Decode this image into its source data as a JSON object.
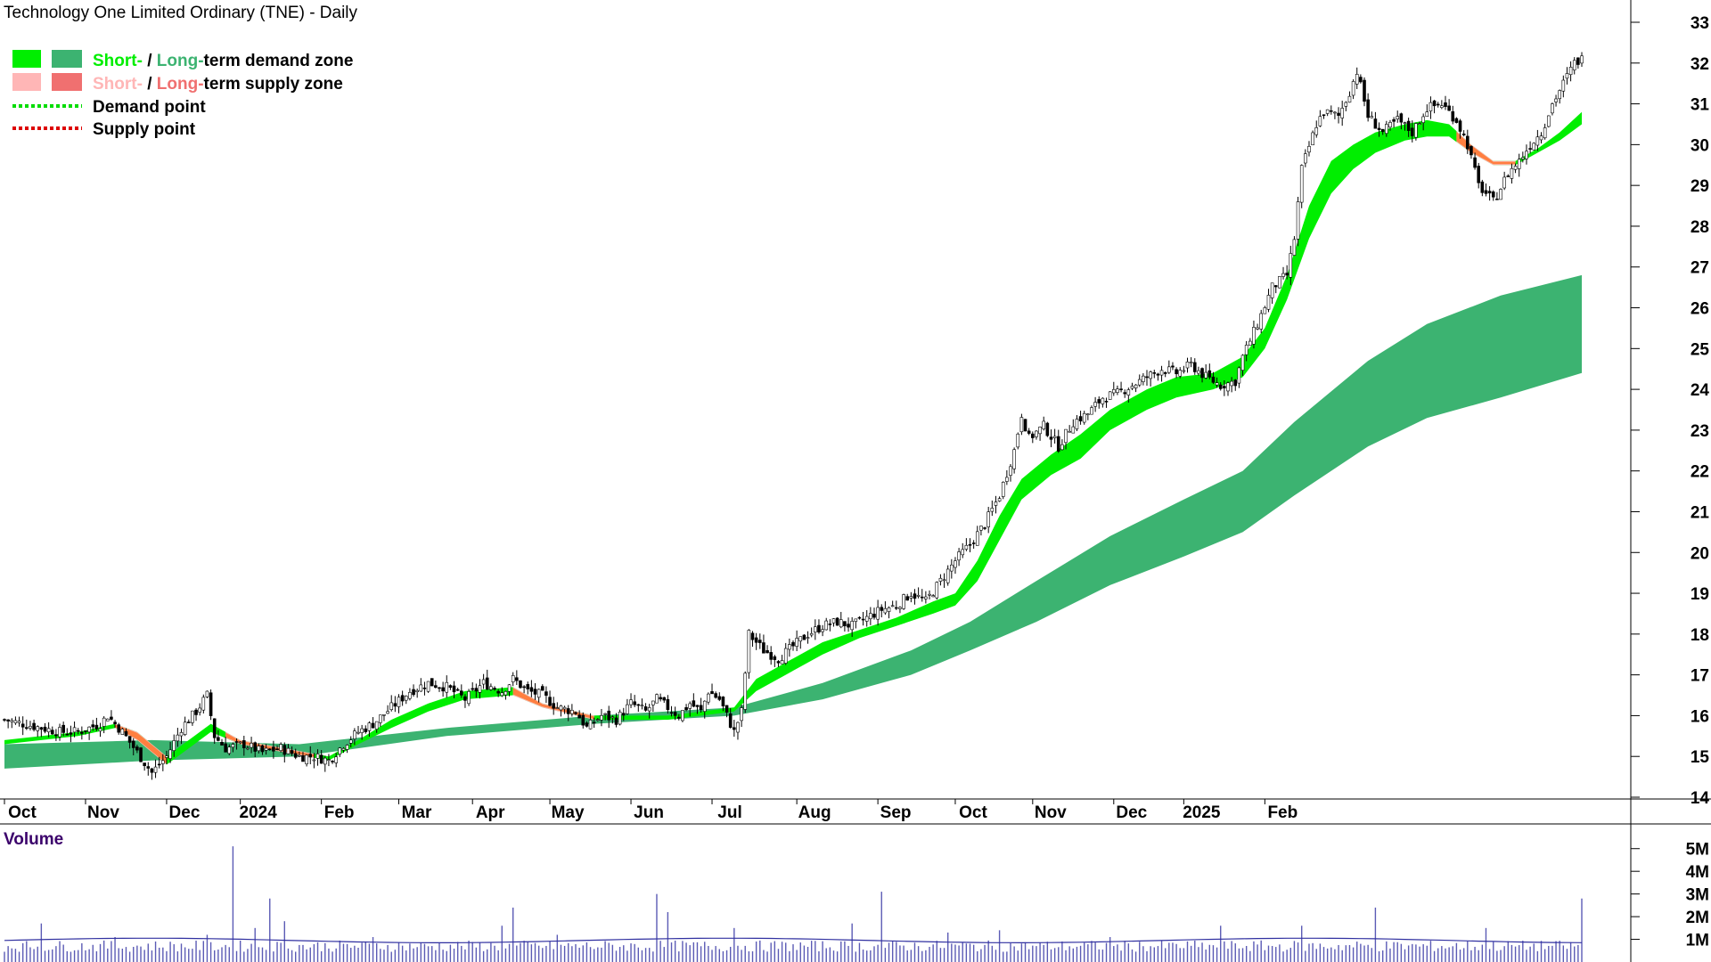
{
  "chart_data": {
    "type": "line",
    "title": "Technology One Limited Ordinary (TNE) - Daily",
    "legend": {
      "placement": "top-left",
      "items": [
        {
          "swatches": [
            "#00ee00",
            "#3cb371"
          ],
          "short": "Short-",
          "sep": " / ",
          "long": "Long-",
          "rest": "term demand zone",
          "short_color": "#00ee00",
          "long_color": "#3cb371"
        },
        {
          "swatches": [
            "#ffb6b6",
            "#f07070"
          ],
          "short": "Short-",
          "sep": " / ",
          "long": "Long-",
          "rest": "term supply zone",
          "short_color": "#ffb6b6",
          "long_color": "#f07070"
        },
        {
          "line_color": "#00dd00",
          "label": "Demand point"
        },
        {
          "line_color": "#dd0000",
          "label": "Supply point"
        }
      ]
    },
    "price_axis": {
      "min": 14,
      "max": 33,
      "ticks": [
        14,
        15,
        16,
        17,
        18,
        19,
        20,
        21,
        22,
        23,
        24,
        25,
        26,
        27,
        28,
        29,
        30,
        31,
        32,
        33
      ]
    },
    "time_axis": {
      "labels": [
        "Oct",
        "Nov",
        "Dec",
        "2024",
        "Feb",
        "Mar",
        "Apr",
        "May",
        "Jun",
        "Jul",
        "Aug",
        "Sep",
        "Oct",
        "Nov",
        "Dec",
        "2025",
        "Feb"
      ],
      "label_index": [
        0,
        22,
        44,
        64,
        86,
        107,
        127,
        148,
        170,
        192,
        215,
        237,
        258,
        279,
        301,
        320,
        342
      ]
    },
    "approx_close": [
      [
        0,
        15.9
      ],
      [
        5,
        15.8
      ],
      [
        10,
        15.7
      ],
      [
        15,
        15.6
      ],
      [
        20,
        15.6
      ],
      [
        26,
        15.8
      ],
      [
        28,
        16.0
      ],
      [
        32,
        15.6
      ],
      [
        36,
        15.1
      ],
      [
        40,
        14.6
      ],
      [
        44,
        15.0
      ],
      [
        48,
        15.7
      ],
      [
        52,
        16.1
      ],
      [
        55,
        16.5
      ],
      [
        57,
        15.5
      ],
      [
        60,
        15.2
      ],
      [
        65,
        15.3
      ],
      [
        70,
        15.1
      ],
      [
        75,
        15.2
      ],
      [
        80,
        15.0
      ],
      [
        84,
        15.0
      ],
      [
        88,
        14.9
      ],
      [
        92,
        15.3
      ],
      [
        96,
        15.6
      ],
      [
        100,
        15.8
      ],
      [
        105,
        16.2
      ],
      [
        110,
        16.6
      ],
      [
        115,
        16.8
      ],
      [
        120,
        16.7
      ],
      [
        125,
        16.4
      ],
      [
        130,
        16.8
      ],
      [
        135,
        16.6
      ],
      [
        138,
        16.9
      ],
      [
        142,
        16.6
      ],
      [
        146,
        16.5
      ],
      [
        150,
        16.2
      ],
      [
        155,
        16.1
      ],
      [
        158,
        15.7
      ],
      [
        162,
        16.0
      ],
      [
        166,
        15.9
      ],
      [
        170,
        16.3
      ],
      [
        174,
        16.1
      ],
      [
        177,
        16.4
      ],
      [
        180,
        16.2
      ],
      [
        183,
        16.0
      ],
      [
        186,
        16.3
      ],
      [
        189,
        16.1
      ],
      [
        191,
        16.6
      ],
      [
        194,
        16.4
      ],
      [
        198,
        15.6
      ],
      [
        200,
        16.1
      ],
      [
        202,
        18.0
      ],
      [
        206,
        17.6
      ],
      [
        210,
        17.4
      ],
      [
        214,
        17.7
      ],
      [
        218,
        18.0
      ],
      [
        222,
        18.2
      ],
      [
        226,
        18.3
      ],
      [
        230,
        18.2
      ],
      [
        234,
        18.4
      ],
      [
        238,
        18.6
      ],
      [
        242,
        18.7
      ],
      [
        246,
        19.0
      ],
      [
        250,
        18.8
      ],
      [
        254,
        19.3
      ],
      [
        258,
        19.8
      ],
      [
        262,
        20.2
      ],
      [
        266,
        20.7
      ],
      [
        270,
        21.4
      ],
      [
        274,
        22.5
      ],
      [
        276,
        23.4
      ],
      [
        278,
        22.8
      ],
      [
        282,
        23.1
      ],
      [
        286,
        22.6
      ],
      [
        290,
        23.2
      ],
      [
        294,
        23.4
      ],
      [
        298,
        23.8
      ],
      [
        302,
        23.9
      ],
      [
        306,
        24.1
      ],
      [
        310,
        24.3
      ],
      [
        314,
        24.5
      ],
      [
        318,
        24.4
      ],
      [
        322,
        24.6
      ],
      [
        326,
        24.3
      ],
      [
        330,
        24.1
      ],
      [
        334,
        24.2
      ],
      [
        336,
        24.8
      ],
      [
        340,
        25.6
      ],
      [
        344,
        26.5
      ],
      [
        348,
        26.8
      ],
      [
        350,
        27.7
      ],
      [
        352,
        29.4
      ],
      [
        356,
        30.5
      ],
      [
        358,
        30.8
      ],
      [
        362,
        30.7
      ],
      [
        365,
        31.3
      ],
      [
        367,
        31.8
      ],
      [
        370,
        30.7
      ],
      [
        374,
        30.3
      ],
      [
        378,
        30.6
      ],
      [
        382,
        30.3
      ],
      [
        386,
        30.9
      ],
      [
        390,
        31.0
      ],
      [
        394,
        30.6
      ],
      [
        397,
        30.0
      ],
      [
        400,
        29.0
      ],
      [
        404,
        28.6
      ],
      [
        408,
        29.3
      ],
      [
        411,
        29.6
      ],
      [
        414,
        30.0
      ],
      [
        417,
        30.3
      ],
      [
        420,
        31.0
      ],
      [
        423,
        31.5
      ],
      [
        426,
        32.0
      ],
      [
        428,
        32.1
      ]
    ],
    "short_term_zone": [
      [
        0,
        15.4,
        15.3
      ],
      [
        20,
        15.6,
        15.5
      ],
      [
        30,
        15.8,
        15.7
      ],
      [
        36,
        15.6,
        15.4
      ],
      [
        44,
        15.0,
        14.8
      ],
      [
        50,
        15.4,
        15.2
      ],
      [
        56,
        15.8,
        15.6
      ],
      [
        64,
        15.4,
        15.3
      ],
      [
        76,
        15.2,
        15.1
      ],
      [
        88,
        15.0,
        14.9
      ],
      [
        96,
        15.4,
        15.3
      ],
      [
        105,
        15.9,
        15.7
      ],
      [
        115,
        16.3,
        16.1
      ],
      [
        125,
        16.6,
        16.4
      ],
      [
        138,
        16.7,
        16.5
      ],
      [
        146,
        16.3,
        16.2
      ],
      [
        160,
        16.0,
        15.9
      ],
      [
        180,
        16.0,
        15.9
      ],
      [
        198,
        16.2,
        16.1
      ],
      [
        204,
        16.9,
        16.6
      ],
      [
        212,
        17.3,
        17.0
      ],
      [
        222,
        17.8,
        17.5
      ],
      [
        232,
        18.1,
        17.9
      ],
      [
        242,
        18.4,
        18.2
      ],
      [
        252,
        18.8,
        18.5
      ],
      [
        258,
        19.0,
        18.7
      ],
      [
        264,
        19.8,
        19.3
      ],
      [
        270,
        20.9,
        20.3
      ],
      [
        276,
        21.8,
        21.3
      ],
      [
        284,
        22.4,
        21.9
      ],
      [
        292,
        22.9,
        22.3
      ],
      [
        300,
        23.5,
        23.0
      ],
      [
        310,
        24.0,
        23.5
      ],
      [
        318,
        24.3,
        23.8
      ],
      [
        328,
        24.4,
        24.0
      ],
      [
        336,
        24.8,
        24.3
      ],
      [
        342,
        25.5,
        25.0
      ],
      [
        348,
        26.8,
        26.2
      ],
      [
        354,
        28.5,
        27.7
      ],
      [
        360,
        29.6,
        28.8
      ],
      [
        366,
        30.0,
        29.4
      ],
      [
        372,
        30.3,
        29.8
      ],
      [
        380,
        30.5,
        30.1
      ],
      [
        386,
        30.6,
        30.2
      ],
      [
        392,
        30.5,
        30.2
      ],
      [
        398,
        30.0,
        29.8
      ],
      [
        404,
        29.6,
        29.5
      ],
      [
        410,
        29.6,
        29.5
      ],
      [
        416,
        29.9,
        29.8
      ],
      [
        422,
        30.3,
        30.1
      ],
      [
        428,
        30.8,
        30.5
      ]
    ],
    "long_term_zone": [
      [
        0,
        15.3,
        14.7
      ],
      [
        40,
        15.4,
        14.9
      ],
      [
        80,
        15.3,
        15.0
      ],
      [
        120,
        15.7,
        15.5
      ],
      [
        160,
        16.0,
        15.8
      ],
      [
        198,
        16.2,
        16.0
      ],
      [
        222,
        16.8,
        16.4
      ],
      [
        246,
        17.6,
        17.0
      ],
      [
        262,
        18.3,
        17.6
      ],
      [
        280,
        19.3,
        18.3
      ],
      [
        300,
        20.4,
        19.2
      ],
      [
        320,
        21.3,
        19.9
      ],
      [
        336,
        22.0,
        20.5
      ],
      [
        350,
        23.2,
        21.4
      ],
      [
        370,
        24.7,
        22.6
      ],
      [
        386,
        25.6,
        23.3
      ],
      [
        406,
        26.3,
        23.8
      ],
      [
        428,
        26.8,
        24.4
      ]
    ],
    "supply_segments": [
      [
        30,
        44
      ],
      [
        60,
        84
      ],
      [
        138,
        160
      ],
      [
        394,
        410
      ]
    ],
    "volume_axis": {
      "ticks": [
        "5M",
        "4M",
        "3M",
        "2M",
        "1M"
      ],
      "values": [
        5,
        4,
        3,
        2,
        1
      ]
    },
    "volume_spikes_millions": [
      [
        10,
        1.7
      ],
      [
        30,
        1.1
      ],
      [
        55,
        1.2
      ],
      [
        62,
        5.1
      ],
      [
        68,
        1.5
      ],
      [
        72,
        2.8
      ],
      [
        76,
        1.8
      ],
      [
        100,
        1.1
      ],
      [
        135,
        1.6
      ],
      [
        138,
        2.4
      ],
      [
        150,
        1.2
      ],
      [
        177,
        3.0
      ],
      [
        180,
        2.2
      ],
      [
        198,
        1.5
      ],
      [
        230,
        1.7
      ],
      [
        238,
        3.1
      ],
      [
        256,
        1.3
      ],
      [
        270,
        1.4
      ],
      [
        300,
        1.1
      ],
      [
        330,
        1.6
      ],
      [
        352,
        1.6
      ],
      [
        372,
        2.4
      ],
      [
        402,
        1.5
      ],
      [
        428,
        2.8
      ]
    ]
  },
  "volume_panel": {
    "title": "Volume"
  }
}
